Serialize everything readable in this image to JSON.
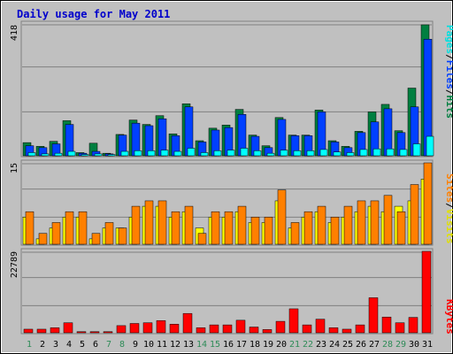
{
  "title": "Daily usage for May 2011",
  "colors": {
    "frame": "#c0c0c0",
    "title": "#0000cc",
    "hits": "#007f40",
    "files": "#0040ff",
    "pages": "#00ffff",
    "visits": "#ffff00",
    "sites": "#ff8000",
    "kbytes": "#ff0000",
    "weekday_label": "#000000",
    "weekend_label": "#2e8b57"
  },
  "chart_data": [
    {
      "type": "bar",
      "title": "Daily usage for May 2011",
      "legend_right": [
        "Pages",
        "Files",
        "Hits"
      ],
      "ylim": [
        0,
        418
      ],
      "y_tick_label": "418",
      "x": [
        "1",
        "2",
        "3",
        "4",
        "5",
        "6",
        "7",
        "8",
        "9",
        "10",
        "11",
        "12",
        "13",
        "14",
        "15",
        "16",
        "17",
        "18",
        "19",
        "20",
        "21",
        "22",
        "23",
        "24",
        "25",
        "26",
        "27",
        "28",
        "29",
        "30",
        "31"
      ],
      "weekend_days": [
        "1",
        "7",
        "8",
        "14",
        "15",
        "21",
        "22",
        "28",
        "29"
      ],
      "series": [
        {
          "name": "Hits",
          "values": [
            42,
            30,
            46,
            112,
            10,
            40,
            8,
            68,
            114,
            100,
            128,
            70,
            166,
            48,
            88,
            98,
            148,
            66,
            32,
            122,
            66,
            66,
            146,
            48,
            30,
            78,
            140,
            164,
            80,
            216,
            418
          ]
        },
        {
          "name": "Files",
          "values": [
            32,
            26,
            38,
            100,
            8,
            14,
            6,
            66,
            104,
            96,
            118,
            64,
            156,
            44,
            82,
            90,
            132,
            62,
            26,
            116,
            64,
            64,
            140,
            44,
            26,
            74,
            108,
            150,
            74,
            156,
            372
          ]
        },
        {
          "name": "Pages",
          "values": [
            10,
            6,
            8,
            14,
            4,
            6,
            4,
            14,
            16,
            16,
            18,
            14,
            24,
            10,
            16,
            18,
            24,
            16,
            8,
            18,
            16,
            16,
            20,
            12,
            10,
            20,
            22,
            22,
            20,
            38,
            62
          ]
        }
      ]
    },
    {
      "type": "bar",
      "legend_right": [
        "Sites",
        "/",
        "Visits"
      ],
      "ylim": [
        0,
        15
      ],
      "y_tick_label": "15",
      "x": [
        "1",
        "2",
        "3",
        "4",
        "5",
        "6",
        "7",
        "8",
        "9",
        "10",
        "11",
        "12",
        "13",
        "14",
        "15",
        "16",
        "17",
        "18",
        "19",
        "20",
        "21",
        "22",
        "23",
        "24",
        "25",
        "26",
        "27",
        "28",
        "29",
        "30",
        "31"
      ],
      "series": [
        {
          "name": "Visits",
          "values": [
            5,
            1,
            3,
            5,
            5,
            1,
            3,
            3,
            5,
            7,
            7,
            5,
            6,
            3,
            5,
            5,
            6,
            4,
            4,
            8,
            3,
            5,
            6,
            4,
            5,
            6,
            7,
            6,
            7,
            8,
            12
          ]
        },
        {
          "name": "Sites",
          "values": [
            6,
            2,
            4,
            6,
            6,
            2,
            4,
            3,
            7,
            8,
            8,
            6,
            7,
            2,
            6,
            6,
            7,
            5,
            5,
            10,
            4,
            6,
            7,
            5,
            7,
            8,
            8,
            9,
            6,
            11,
            15
          ]
        }
      ]
    },
    {
      "type": "bar",
      "legend_right": [
        "KBytes"
      ],
      "ylim": [
        0,
        22789
      ],
      "y_tick_label": "22789",
      "x": [
        "1",
        "2",
        "3",
        "4",
        "5",
        "6",
        "7",
        "8",
        "9",
        "10",
        "11",
        "12",
        "13",
        "14",
        "15",
        "16",
        "17",
        "18",
        "19",
        "20",
        "21",
        "22",
        "23",
        "24",
        "25",
        "26",
        "27",
        "28",
        "29",
        "30",
        "31"
      ],
      "series": [
        {
          "name": "KBytes",
          "values": [
            1000,
            1000,
            1400,
            2800,
            300,
            300,
            300,
            2000,
            2600,
            2800,
            3400,
            2400,
            5400,
            1400,
            2200,
            2200,
            3500,
            1600,
            900,
            3200,
            6700,
            2200,
            3800,
            1400,
            1000,
            2200,
            9800,
            4400,
            2800,
            4300,
            22789
          ]
        }
      ]
    }
  ]
}
